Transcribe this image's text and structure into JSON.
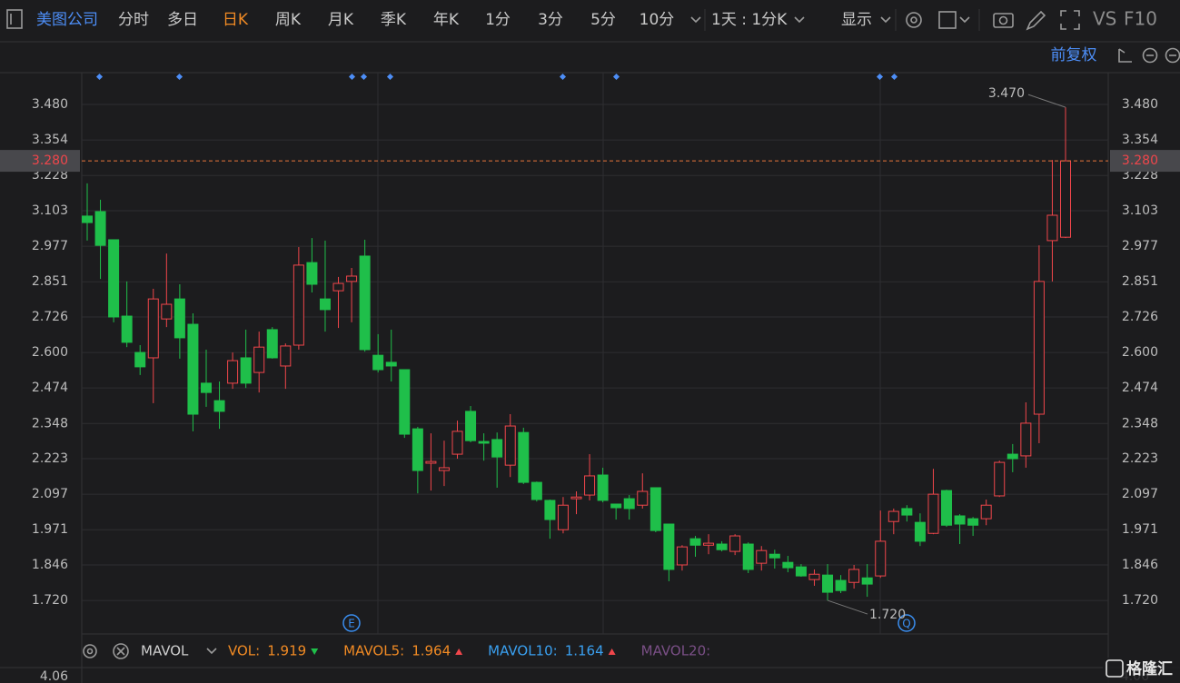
{
  "toolbar": {
    "stock": "美图公司",
    "tabs": [
      "分时",
      "多日",
      "日K",
      "周K",
      "月K",
      "季K",
      "年K",
      "1分",
      "3分",
      "5分",
      "10分"
    ],
    "period": "1天 : 1分K",
    "display": "显示",
    "vs": "VS",
    "f10": "F10",
    "adjust": "前复权"
  },
  "chart_data": {
    "type": "candlestick",
    "up_color": "#f0464b",
    "down_color": "#1fbf4a",
    "open": [
      3.084,
      3.1,
      3.0,
      2.729,
      2.6,
      2.581,
      2.719,
      2.79,
      2.7,
      2.491,
      2.429,
      2.491,
      2.581,
      2.529,
      2.681,
      2.552,
      2.626,
      2.919,
      2.79,
      2.819,
      2.852,
      2.942,
      2.59,
      2.565,
      2.539,
      2.329,
      2.207,
      2.181,
      2.239,
      2.391,
      2.284,
      2.291,
      2.2,
      2.316,
      2.139,
      2.075,
      1.971,
      2.081,
      2.094,
      2.165,
      2.062,
      2.081,
      2.058,
      2.12,
      1.991,
      1.846,
      1.939,
      1.916,
      1.92,
      1.894,
      1.92,
      1.852,
      1.884,
      1.855,
      1.839,
      1.794,
      1.81,
      1.791,
      1.784,
      1.8,
      1.807,
      2.0,
      2.046,
      1.997,
      1.958,
      2.11,
      2.02,
      2.01,
      2.01,
      2.091,
      2.239,
      2.233,
      2.381,
      2.997,
      3.009
    ],
    "high": [
      3.2,
      3.142,
      3.0,
      2.852,
      2.626,
      2.826,
      2.951,
      2.842,
      2.739,
      2.61,
      2.497,
      2.6,
      2.681,
      2.674,
      2.69,
      2.632,
      2.974,
      3.006,
      2.997,
      2.868,
      2.9,
      3.0,
      2.665,
      2.681,
      2.539,
      2.336,
      2.313,
      2.287,
      2.358,
      2.41,
      2.313,
      2.316,
      2.381,
      2.333,
      2.142,
      2.078,
      2.087,
      2.107,
      2.239,
      2.191,
      2.062,
      2.094,
      2.171,
      2.12,
      1.991,
      1.916,
      1.949,
      1.955,
      1.93,
      1.955,
      1.926,
      1.913,
      1.9,
      1.878,
      1.849,
      1.83,
      1.849,
      1.81,
      1.846,
      1.849,
      2.039,
      2.046,
      2.058,
      2.029,
      2.187,
      2.113,
      2.026,
      2.016,
      2.078,
      2.216,
      2.275,
      2.423,
      2.98,
      3.283,
      3.47
    ],
    "low": [
      2.997,
      2.861,
      2.707,
      2.619,
      2.52,
      2.42,
      2.69,
      2.578,
      2.32,
      2.407,
      2.329,
      2.471,
      2.474,
      2.458,
      2.578,
      2.471,
      2.61,
      2.813,
      2.674,
      2.687,
      2.707,
      2.603,
      2.529,
      2.497,
      2.297,
      2.1,
      2.11,
      2.126,
      2.223,
      2.281,
      2.216,
      2.12,
      2.158,
      2.133,
      2.071,
      1.939,
      1.958,
      2.026,
      2.075,
      2.068,
      2.007,
      2.007,
      2.046,
      1.962,
      1.788,
      1.826,
      1.875,
      1.884,
      1.894,
      1.881,
      1.817,
      1.826,
      1.833,
      1.82,
      1.804,
      1.772,
      1.72,
      1.746,
      1.762,
      1.733,
      1.8,
      1.955,
      2.0,
      1.913,
      1.955,
      1.981,
      1.92,
      1.949,
      1.987,
      2.087,
      2.175,
      2.191,
      2.278,
      2.852,
      3.006
    ],
    "close": [
      3.061,
      2.98,
      2.726,
      2.636,
      2.549,
      2.79,
      2.771,
      2.652,
      2.381,
      2.458,
      2.391,
      2.571,
      2.491,
      2.619,
      2.581,
      2.623,
      2.91,
      2.842,
      2.752,
      2.845,
      2.871,
      2.61,
      2.539,
      2.552,
      2.31,
      2.181,
      2.213,
      2.191,
      2.32,
      2.287,
      2.278,
      2.229,
      2.339,
      2.139,
      2.078,
      2.007,
      2.058,
      2.087,
      2.162,
      2.075,
      2.049,
      2.046,
      2.107,
      1.968,
      1.83,
      1.91,
      1.916,
      1.923,
      1.9,
      1.949,
      1.83,
      1.897,
      1.871,
      1.836,
      1.807,
      1.813,
      1.749,
      1.755,
      1.83,
      1.778,
      1.93,
      2.036,
      2.023,
      1.93,
      2.097,
      1.987,
      1.991,
      1.987,
      2.058,
      2.21,
      2.223,
      2.349,
      2.852,
      3.087,
      3.28
    ],
    "ylim": [
      1.601,
      3.593
    ],
    "yticks": [
      {
        "value": 3.48,
        "label": "3.480"
      },
      {
        "value": 3.354,
        "label": "3.354"
      },
      {
        "value": 3.228,
        "label": "3.228"
      },
      {
        "value": 3.103,
        "label": "3.103"
      },
      {
        "value": 2.977,
        "label": "2.977"
      },
      {
        "value": 2.851,
        "label": "2.851"
      },
      {
        "value": 2.726,
        "label": "2.726"
      },
      {
        "value": 2.6,
        "label": "2.600"
      },
      {
        "value": 2.474,
        "label": "2.474"
      },
      {
        "value": 2.348,
        "label": "2.348"
      },
      {
        "value": 2.223,
        "label": "2.223"
      },
      {
        "value": 2.097,
        "label": "2.097"
      },
      {
        "value": 1.971,
        "label": "1.971"
      },
      {
        "value": 1.846,
        "label": "1.846"
      },
      {
        "value": 1.72,
        "label": "1.720"
      }
    ],
    "grid": true,
    "current_price": {
      "value": 3.28,
      "label": "3.280"
    },
    "max_label": {
      "value": 3.47,
      "label": "3.470"
    },
    "min_label": {
      "value": 1.72,
      "label": "1.720"
    },
    "event_markers": [
      "E",
      "Q"
    ]
  },
  "volume": {
    "indicator": "MAVOL",
    "items": [
      {
        "name": "VOL:",
        "value": 1.919,
        "color": "#f08a24",
        "value_color": "#f08a24",
        "trend": "down"
      },
      {
        "name": "MAVOL5:",
        "value": 1.964,
        "color": "#f08a24",
        "value_color": "#f08a24",
        "trend": "up"
      },
      {
        "name": "MAVOL10:",
        "value": 1.164,
        "color": "#3aa0f0",
        "value_color": "#3aa0f0",
        "trend": "up"
      },
      {
        "name": "MAVOL20:",
        "color": "#7a4f86"
      }
    ],
    "yticks": [
      4.06
    ]
  },
  "watermark": "格隆汇"
}
